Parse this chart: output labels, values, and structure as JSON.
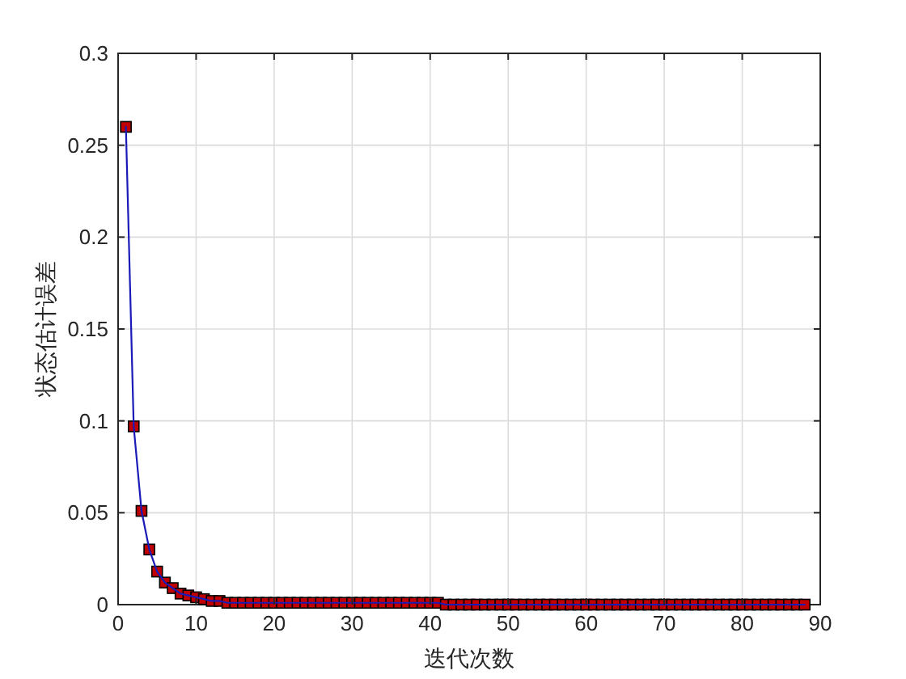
{
  "chart_data": {
    "type": "line",
    "xlabel": "迭代次数",
    "ylabel": "状态估计误差",
    "xlim": [
      0,
      90
    ],
    "ylim": [
      0,
      0.3
    ],
    "xticks": [
      0,
      10,
      20,
      30,
      40,
      50,
      60,
      70,
      80,
      90
    ],
    "yticks": [
      0,
      0.05,
      0.1,
      0.15,
      0.2,
      0.25,
      0.3
    ],
    "grid": true,
    "marker": "square",
    "line_style": "solid",
    "series": [
      {
        "color": "#1a1ab8",
        "colors": [
          "#c00000",
          "#c00000",
          "#c00000",
          "#c00000",
          "#c00000",
          "#c00000",
          "#c00000",
          "#c00000",
          "#c00000",
          "#c00000",
          "#c00000",
          "#c00000",
          "#c00000",
          "#c00000",
          "#c00000",
          "#c00000",
          "#c00000",
          "#c00000",
          "#c00000",
          "#c00000",
          "#c00000",
          "#c00000",
          "#c00000",
          "#c00000",
          "#c00000",
          "#c00000",
          "#c00000",
          "#c00000",
          "#c00000",
          "#c00000",
          "#c00000",
          "#c00000",
          "#c00000",
          "#c00000",
          "#c00000",
          "#c00000",
          "#c00000",
          "#c00000",
          "#c00000",
          "#c00000",
          "#c00000",
          "#c00000",
          "#c00000",
          "#c00000",
          "#c00000",
          "#c00000",
          "#c00000",
          "#c00000",
          "#c00000",
          "#c00000",
          "#c00000",
          "#c00000",
          "#c00000",
          "#c00000",
          "#c00000",
          "#c00000",
          "#c00000",
          "#c00000",
          "#c00000",
          "#c00000",
          "#c00000",
          "#c00000",
          "#c00000",
          "#c00000",
          "#c00000",
          "#c00000",
          "#c00000",
          "#c00000",
          "#c00000",
          "#c00000",
          "#c00000",
          "#c00000",
          "#c00000",
          "#c00000",
          "#c00000",
          "#c00000",
          "#c00000",
          "#c00000",
          "#c00000",
          "#c00000",
          "#c00000",
          "#c00000",
          "#c00000",
          "#c00000",
          "#c00000",
          "#c00000",
          "#c00000",
          "#c00000"
        ],
        "x": [
          1,
          2,
          3,
          4,
          5,
          6,
          7,
          8,
          9,
          10,
          11,
          12,
          13,
          14,
          15,
          16,
          17,
          18,
          19,
          20,
          21,
          22,
          23,
          24,
          25,
          26,
          27,
          28,
          29,
          30,
          31,
          32,
          33,
          34,
          35,
          36,
          37,
          38,
          39,
          40,
          41,
          42,
          43,
          44,
          45,
          46,
          47,
          48,
          49,
          50,
          51,
          52,
          53,
          54,
          55,
          56,
          57,
          58,
          59,
          60,
          61,
          62,
          63,
          64,
          65,
          66,
          67,
          68,
          69,
          70,
          71,
          72,
          73,
          74,
          75,
          76,
          77,
          78,
          79,
          80,
          81,
          82,
          83,
          84,
          85,
          86,
          87,
          88
        ],
        "values": [
          0.26,
          0.097,
          0.051,
          0.03,
          0.018,
          0.012,
          0.009,
          0.006,
          0.005,
          0.004,
          0.003,
          0.002,
          0.002,
          0.001,
          0.001,
          0.001,
          0.001,
          0.001,
          0.001,
          0.001,
          0.001,
          0.001,
          0.001,
          0.001,
          0.001,
          0.001,
          0.001,
          0.001,
          0.001,
          0.001,
          0.001,
          0.001,
          0.001,
          0.001,
          0.001,
          0.001,
          0.001,
          0.001,
          0.001,
          0.001,
          0.001,
          0,
          0,
          0,
          0,
          0,
          0,
          0,
          0,
          0,
          0,
          0,
          0,
          0,
          0,
          0,
          0,
          0,
          0,
          0,
          0,
          0,
          0,
          0,
          0,
          0,
          0,
          0,
          0,
          0,
          0,
          0,
          0,
          0,
          0,
          0,
          0,
          0,
          0,
          0,
          0,
          0,
          0,
          0,
          0,
          0,
          0,
          0
        ]
      }
    ]
  }
}
